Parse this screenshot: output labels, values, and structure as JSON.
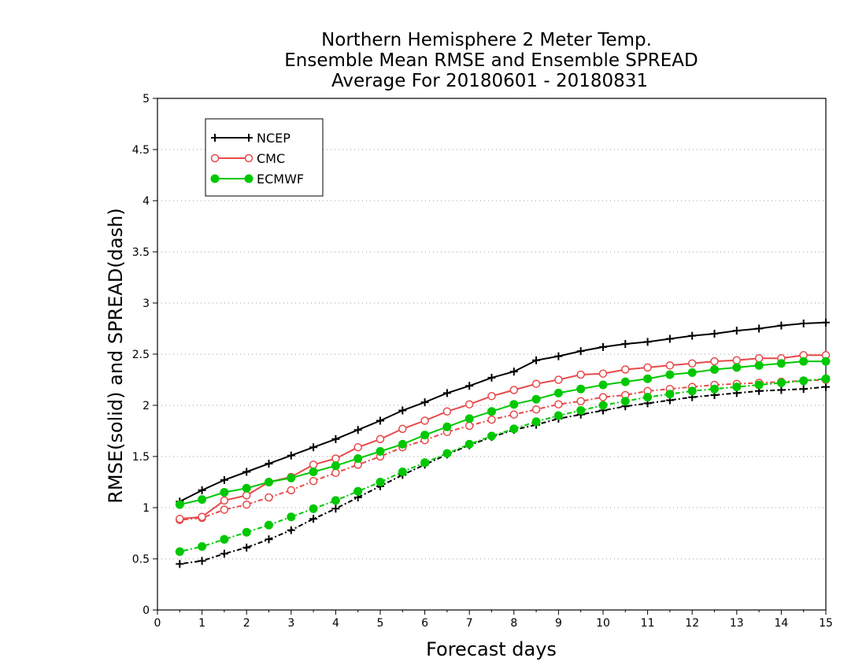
{
  "chart_data": {
    "type": "line",
    "title": [
      "Northern Hemisphere 2 Meter Temp.",
      "Ensemble Mean RMSE and Ensemble SPREAD",
      "Average For 20180601 - 20180831"
    ],
    "xlabel": "Forecast days",
    "ylabel": "RMSE(solid) and SPREAD(dash)",
    "xlim": [
      0,
      15
    ],
    "ylim": [
      0,
      5
    ],
    "xticks": [
      0,
      1,
      2,
      3,
      4,
      5,
      6,
      7,
      8,
      9,
      10,
      11,
      12,
      13,
      14,
      15
    ],
    "yticks": [
      0,
      0.5,
      1,
      1.5,
      2,
      2.5,
      3,
      3.5,
      4,
      4.5,
      5
    ],
    "ytick_labels": [
      "0",
      "0.5",
      "1",
      "1.5",
      "2",
      "2.5",
      "3",
      "3.5",
      "4",
      "4.5",
      "5"
    ],
    "grid": "horizontal-dotted",
    "legend_position": "top-left",
    "x": [
      0.5,
      1,
      1.5,
      2,
      2.5,
      3,
      3.5,
      4,
      4.5,
      5,
      5.5,
      6,
      6.5,
      7,
      7.5,
      8,
      8.5,
      9,
      9.5,
      10,
      10.5,
      11,
      11.5,
      12,
      12.5,
      13,
      13.5,
      14,
      14.5,
      15
    ],
    "series": [
      {
        "name": "NCEP",
        "color": "#000000",
        "marker": "plus",
        "rmse": [
          1.06,
          1.17,
          1.27,
          1.35,
          1.43,
          1.51,
          1.59,
          1.67,
          1.76,
          1.85,
          1.95,
          2.03,
          2.12,
          2.19,
          2.27,
          2.33,
          2.44,
          2.48,
          2.53,
          2.57,
          2.6,
          2.62,
          2.65,
          2.68,
          2.7,
          2.73,
          2.75,
          2.78,
          2.8,
          2.81
        ],
        "spread": [
          0.45,
          0.48,
          0.55,
          0.61,
          0.69,
          0.78,
          0.89,
          0.99,
          1.1,
          1.21,
          1.32,
          1.42,
          1.52,
          1.61,
          1.69,
          1.76,
          1.81,
          1.87,
          1.91,
          1.95,
          1.99,
          2.02,
          2.05,
          2.08,
          2.1,
          2.12,
          2.14,
          2.15,
          2.16,
          2.18
        ]
      },
      {
        "name": "CMC",
        "color": "#e8494a",
        "marker": "open-circle",
        "rmse": [
          0.89,
          0.91,
          1.07,
          1.12,
          1.25,
          1.3,
          1.42,
          1.48,
          1.59,
          1.67,
          1.77,
          1.85,
          1.94,
          2.01,
          2.09,
          2.15,
          2.21,
          2.25,
          2.3,
          2.31,
          2.35,
          2.37,
          2.39,
          2.41,
          2.43,
          2.44,
          2.46,
          2.46,
          2.49,
          2.49
        ],
        "spread": [
          0.88,
          0.9,
          0.98,
          1.03,
          1.1,
          1.17,
          1.26,
          1.34,
          1.42,
          1.5,
          1.59,
          1.66,
          1.74,
          1.8,
          1.86,
          1.91,
          1.96,
          2.01,
          2.04,
          2.08,
          2.1,
          2.14,
          2.16,
          2.18,
          2.2,
          2.21,
          2.22,
          2.23,
          2.24,
          2.25
        ]
      },
      {
        "name": "ECMWF",
        "color": "#00c800",
        "marker": "filled-circle",
        "rmse": [
          1.03,
          1.08,
          1.15,
          1.19,
          1.25,
          1.29,
          1.35,
          1.41,
          1.48,
          1.55,
          1.62,
          1.71,
          1.79,
          1.87,
          1.94,
          2.01,
          2.06,
          2.12,
          2.16,
          2.2,
          2.23,
          2.26,
          2.3,
          2.32,
          2.35,
          2.37,
          2.39,
          2.41,
          2.43,
          2.43
        ],
        "spread": [
          0.57,
          0.62,
          0.69,
          0.76,
          0.83,
          0.91,
          0.99,
          1.07,
          1.16,
          1.25,
          1.35,
          1.44,
          1.53,
          1.62,
          1.7,
          1.77,
          1.84,
          1.9,
          1.95,
          2.0,
          2.04,
          2.08,
          2.11,
          2.14,
          2.16,
          2.18,
          2.2,
          2.22,
          2.24,
          2.26
        ]
      }
    ]
  }
}
